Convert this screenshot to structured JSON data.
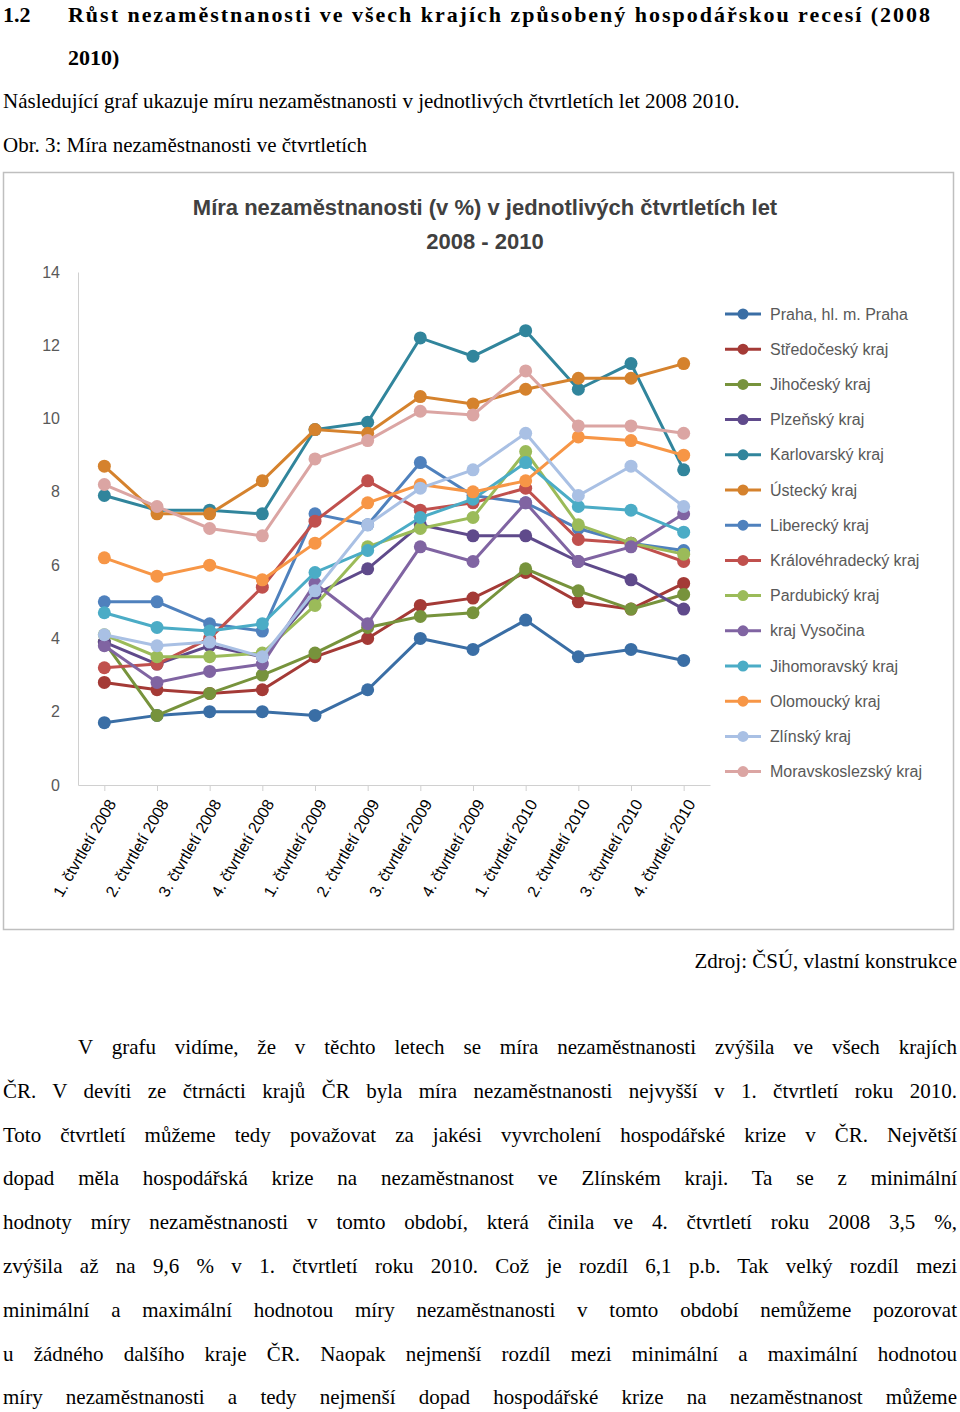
{
  "heading": {
    "number": "1.2",
    "lines": [
      "Růst nezaměstnanosti ve všech krajích způsobený hospodářskou recesí (2008",
      "2010)"
    ]
  },
  "intro": "Následující graf ukazuje míru nezaměstnanosti v jednotlivých čtvrtletích let 2008 2010.",
  "figure_caption": "Obr. 3: Míra nezaměstnanosti ve čtvrtletích",
  "chart_data": {
    "type": "line",
    "title": [
      "Míra nezaměstnanosti (v %) v jednotlivých čtvrtletích let",
      "2008 - 2010"
    ],
    "categories": [
      "1. čtvrtletí 2008",
      "2. čtvrtletí 2008",
      "3. čtvrtletí 2008",
      "4. čtvrtletí 2008",
      "1. čtvrtletí 2009",
      "2. čtvrtletí 2009",
      "3. čtvrtletí 2009",
      "4. čtvrtletí 2009",
      "1. čtvrtletí 2010",
      "2. čtvrtletí 2010",
      "3. čtvrtletí 2010",
      "4. čtvrtletí 2010"
    ],
    "series": [
      {
        "name": "Praha, hl. m. Praha",
        "color": "#3a6ea5",
        "values": [
          1.7,
          1.9,
          2.0,
          2.0,
          1.9,
          2.6,
          4.0,
          3.7,
          4.5,
          3.5,
          3.7,
          3.4
        ]
      },
      {
        "name": "Středočeský kraj",
        "color": "#a43a36",
        "values": [
          2.8,
          2.6,
          2.5,
          2.6,
          3.5,
          4.0,
          4.9,
          5.1,
          5.8,
          5.0,
          4.8,
          5.5
        ]
      },
      {
        "name": "Jihočeský kraj",
        "color": "#77933c",
        "values": [
          3.9,
          1.9,
          2.5,
          3.0,
          3.6,
          4.3,
          4.6,
          4.7,
          5.9,
          5.3,
          4.8,
          5.2
        ]
      },
      {
        "name": "Plzeňský kraj",
        "color": "#5f4a8b",
        "values": [
          3.9,
          3.3,
          3.8,
          3.5,
          5.2,
          5.9,
          7.1,
          6.8,
          6.8,
          6.1,
          5.6,
          4.8
        ]
      },
      {
        "name": "Karlovarský kraj",
        "color": "#31859c",
        "values": [
          7.9,
          7.5,
          7.5,
          7.4,
          9.7,
          9.9,
          12.2,
          11.7,
          12.4,
          10.8,
          11.5,
          8.6
        ]
      },
      {
        "name": "Ústecký kraj",
        "color": "#d5822d",
        "values": [
          8.7,
          7.4,
          7.4,
          8.3,
          9.7,
          9.6,
          10.6,
          10.4,
          10.8,
          11.1,
          11.1,
          11.5
        ]
      },
      {
        "name": "Liberecký kraj",
        "color": "#4f81bd",
        "values": [
          5.0,
          5.0,
          4.4,
          4.2,
          7.4,
          7.1,
          8.8,
          7.9,
          7.7,
          7.0,
          6.6,
          6.4
        ]
      },
      {
        "name": "Královéhradecký kraj",
        "color": "#c0504d",
        "values": [
          3.2,
          3.3,
          4.0,
          5.4,
          7.2,
          8.3,
          7.5,
          7.7,
          8.1,
          6.7,
          6.6,
          6.1
        ]
      },
      {
        "name": "Pardubický kraj",
        "color": "#9bbb59",
        "values": [
          4.1,
          3.5,
          3.5,
          3.6,
          4.9,
          6.5,
          7.0,
          7.3,
          9.1,
          7.1,
          6.6,
          6.3
        ]
      },
      {
        "name": "kraj Vysočina",
        "color": "#8064a2",
        "values": [
          3.8,
          2.8,
          3.1,
          3.3,
          5.5,
          4.4,
          6.5,
          6.1,
          7.7,
          6.1,
          6.5,
          7.4
        ]
      },
      {
        "name": "Jihomoravský kraj",
        "color": "#4bacc6",
        "values": [
          4.7,
          4.3,
          4.2,
          4.4,
          5.8,
          6.4,
          7.3,
          7.8,
          8.8,
          7.6,
          7.5,
          6.9
        ]
      },
      {
        "name": "Olomoucký kraj",
        "color": "#f79646",
        "values": [
          6.2,
          5.7,
          6.0,
          5.6,
          6.6,
          7.7,
          8.2,
          8.0,
          8.3,
          9.5,
          9.4,
          9.0
        ]
      },
      {
        "name": "Zlínský kraj",
        "color": "#a9c0e4",
        "values": [
          4.1,
          3.8,
          3.9,
          3.5,
          5.3,
          7.1,
          8.1,
          8.6,
          9.6,
          7.9,
          8.7,
          7.6
        ]
      },
      {
        "name": "Moravskoslezský kraj",
        "color": "#dba5a3",
        "values": [
          8.2,
          7.6,
          7.0,
          6.8,
          8.9,
          9.4,
          10.2,
          10.1,
          11.3,
          9.8,
          9.8,
          9.6
        ]
      }
    ],
    "ylim": [
      0,
      14
    ],
    "yticks": [
      0,
      2,
      4,
      6,
      8,
      10,
      12,
      14
    ],
    "grid": false,
    "legend": "right",
    "marker": "circle"
  },
  "source": "Zdroj: ČSÚ, vlastní konstrukce",
  "paragraph": [
    "V grafu vidíme, že v těchto letech se míra nezaměstnanosti zvýšila ve všech krajích",
    "ČR. V devíti ze čtrnácti krajů ČR byla míra nezaměstnanosti nejvyšší v 1. čtvrtletí roku 2010.",
    "Toto čtvrtletí můžeme tedy považovat za jakési vyvrcholení hospodářské krize v ČR. Největší",
    "dopad měla hospodářská krize na nezaměstnanost ve Zlínském kraji. Ta se z minimální",
    "hodnoty míry nezaměstnanosti v tomto období, která činila ve 4. čtvrtletí roku 2008 3,5 %,",
    "zvýšila až na 9,6 % v 1. čtvrtletí roku 2010. Což je rozdíl 6,1 p.b. Tak velký rozdíl mezi",
    "minimální a maximální hodnotou míry nezaměstnanosti v tomto období nemůžeme pozorovat",
    "u žádného dalšího kraje ČR. Naopak nejmenší rozdíl mezi minimální a maximální hodnotou",
    "míry nezaměstnanosti a tedy nejmenší dopad hospodářské krize na nezaměstnanost můžeme"
  ]
}
